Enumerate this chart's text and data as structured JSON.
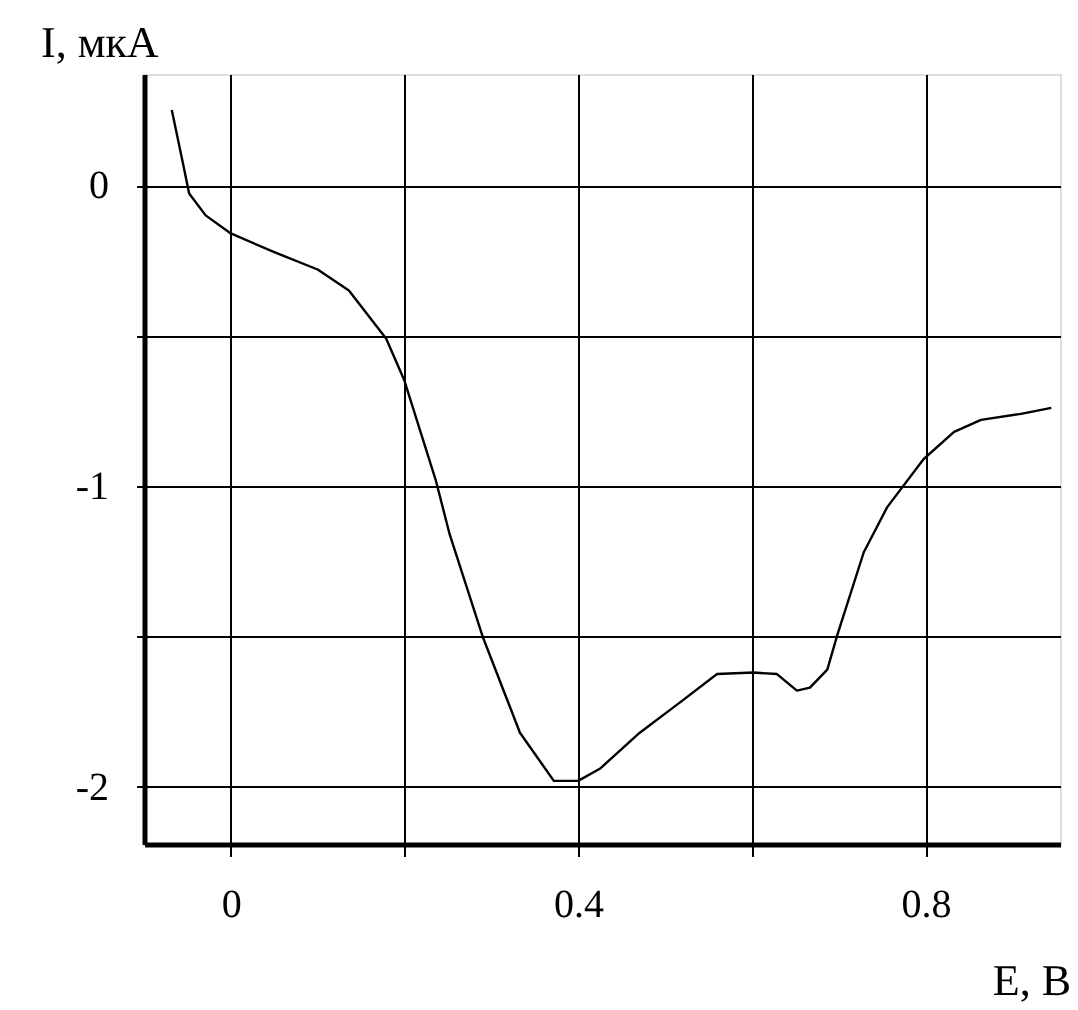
{
  "chart_data": {
    "type": "line",
    "xlabel": "E, В",
    "ylabel": "I, мкА",
    "x": [
      -0.068,
      -0.056,
      -0.048,
      -0.029,
      0.0,
      0.048,
      0.1,
      0.136,
      0.179,
      0.2,
      0.236,
      0.252,
      0.29,
      0.333,
      0.372,
      0.4,
      0.425,
      0.471,
      0.517,
      0.56,
      0.602,
      0.629,
      0.652,
      0.667,
      0.687,
      0.698,
      0.729,
      0.756,
      0.798,
      0.833,
      0.864,
      0.91,
      0.945
    ],
    "series": [
      {
        "color": "#000000",
        "values": [
          0.25,
          0.085,
          -0.027,
          -0.1,
          -0.16,
          -0.22,
          -0.28,
          -0.35,
          -0.51,
          -0.65,
          -0.98,
          -1.16,
          -1.5,
          -1.82,
          -1.98,
          -1.98,
          -1.94,
          -1.82,
          -1.72,
          -1.625,
          -1.62,
          -1.625,
          -1.68,
          -1.67,
          -1.61,
          -1.5,
          -1.22,
          -1.07,
          -0.91,
          -0.82,
          -0.78,
          -0.76,
          -0.74
        ]
      }
    ],
    "xlim": [
      -0.1,
      0.955
    ],
    "ylim": [
      -2.19,
      0.37
    ],
    "xticks": [
      0,
      {
        "value": 0.2,
        "label": null
      },
      0.4,
      {
        "value": 0.6,
        "label": null
      },
      0.8
    ],
    "yticks": [
      -2,
      {
        "value": -1.5,
        "label": null
      },
      -1,
      {
        "value": -0.5,
        "label": null
      },
      0
    ],
    "grid": true,
    "marker": "none",
    "line_style": "solid"
  }
}
